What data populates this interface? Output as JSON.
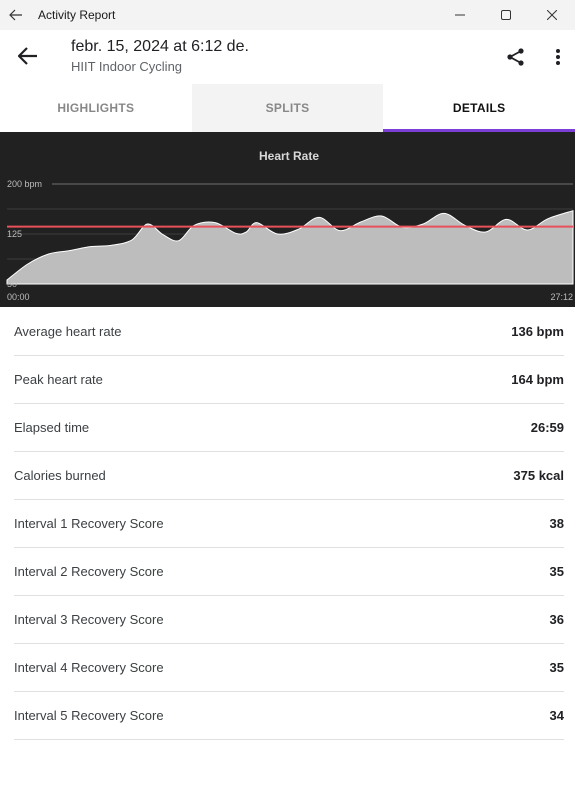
{
  "window": {
    "title": "Activity Report"
  },
  "header": {
    "title": "febr. 15, 2024 at 6:12 de.",
    "subtitle": "HIIT Indoor Cycling"
  },
  "tabs": [
    {
      "label": "HIGHLIGHTS",
      "active": false
    },
    {
      "label": "SPLITS",
      "active": false
    },
    {
      "label": "DETAILS",
      "active": true
    }
  ],
  "colors": {
    "accent": "#7b3fd6",
    "chart_bg": "#212121",
    "average_line": "#e8505b",
    "area_fill": "#bdbdbd"
  },
  "chart_data": {
    "type": "area",
    "title": "Heart Rate",
    "y_ticks": [
      "200 bpm",
      "125",
      "50"
    ],
    "ylim": [
      50,
      200
    ],
    "average_line": 136,
    "x_tick_labels": [
      "00:00",
      "27:12"
    ],
    "x_minutes": [
      0,
      1,
      2,
      3,
      4,
      5,
      6,
      6.75,
      7.5,
      8.25,
      9,
      10,
      11,
      11.5,
      12,
      13,
      14,
      15,
      16,
      17,
      18,
      19,
      20,
      21,
      22,
      23,
      24,
      25,
      26,
      27.2
    ],
    "values": [
      56,
      80,
      95,
      100,
      106,
      108,
      116,
      140,
      124,
      115,
      138,
      142,
      126,
      128,
      142,
      125,
      132,
      150,
      130,
      143,
      152,
      135,
      140,
      156,
      138,
      128,
      147,
      131,
      148,
      160
    ],
    "grid": true
  },
  "stats": [
    {
      "label": "Average heart rate",
      "value": "136 bpm"
    },
    {
      "label": "Peak heart rate",
      "value": "164 bpm"
    },
    {
      "label": "Elapsed time",
      "value": "26:59"
    },
    {
      "label": "Calories burned",
      "value": "375 kcal"
    },
    {
      "label": "Interval 1 Recovery Score",
      "value": "38"
    },
    {
      "label": "Interval 2 Recovery Score",
      "value": "35"
    },
    {
      "label": "Interval 3 Recovery Score",
      "value": "36"
    },
    {
      "label": "Interval 4 Recovery Score",
      "value": "35"
    },
    {
      "label": "Interval 5 Recovery Score",
      "value": "34"
    }
  ]
}
